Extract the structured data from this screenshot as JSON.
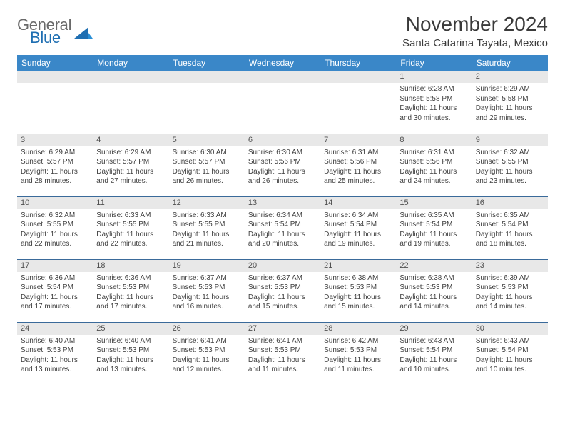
{
  "logo": {
    "general": "General",
    "blue": "Blue"
  },
  "title": "November 2024",
  "location": "Santa Catarina Tayata, Mexico",
  "colors": {
    "header_bg": "#3a87c8",
    "header_text": "#ffffff",
    "daynum_bg": "#e8e8e8",
    "row_border": "#3a6a9a",
    "logo_gray": "#6a6a6a",
    "logo_blue": "#1f6fb2",
    "text": "#404040"
  },
  "typography": {
    "title_fontsize": 28,
    "location_fontsize": 15,
    "weekday_fontsize": 12,
    "daynum_fontsize": 11,
    "body_fontsize": 10
  },
  "weekdays": [
    "Sunday",
    "Monday",
    "Tuesday",
    "Wednesday",
    "Thursday",
    "Friday",
    "Saturday"
  ],
  "weeks": [
    [
      {
        "n": "",
        "sunrise": "",
        "sunset": "",
        "daylight": ""
      },
      {
        "n": "",
        "sunrise": "",
        "sunset": "",
        "daylight": ""
      },
      {
        "n": "",
        "sunrise": "",
        "sunset": "",
        "daylight": ""
      },
      {
        "n": "",
        "sunrise": "",
        "sunset": "",
        "daylight": ""
      },
      {
        "n": "",
        "sunrise": "",
        "sunset": "",
        "daylight": ""
      },
      {
        "n": "1",
        "sunrise": "Sunrise: 6:28 AM",
        "sunset": "Sunset: 5:58 PM",
        "daylight": "Daylight: 11 hours and 30 minutes."
      },
      {
        "n": "2",
        "sunrise": "Sunrise: 6:29 AM",
        "sunset": "Sunset: 5:58 PM",
        "daylight": "Daylight: 11 hours and 29 minutes."
      }
    ],
    [
      {
        "n": "3",
        "sunrise": "Sunrise: 6:29 AM",
        "sunset": "Sunset: 5:57 PM",
        "daylight": "Daylight: 11 hours and 28 minutes."
      },
      {
        "n": "4",
        "sunrise": "Sunrise: 6:29 AM",
        "sunset": "Sunset: 5:57 PM",
        "daylight": "Daylight: 11 hours and 27 minutes."
      },
      {
        "n": "5",
        "sunrise": "Sunrise: 6:30 AM",
        "sunset": "Sunset: 5:57 PM",
        "daylight": "Daylight: 11 hours and 26 minutes."
      },
      {
        "n": "6",
        "sunrise": "Sunrise: 6:30 AM",
        "sunset": "Sunset: 5:56 PM",
        "daylight": "Daylight: 11 hours and 26 minutes."
      },
      {
        "n": "7",
        "sunrise": "Sunrise: 6:31 AM",
        "sunset": "Sunset: 5:56 PM",
        "daylight": "Daylight: 11 hours and 25 minutes."
      },
      {
        "n": "8",
        "sunrise": "Sunrise: 6:31 AM",
        "sunset": "Sunset: 5:56 PM",
        "daylight": "Daylight: 11 hours and 24 minutes."
      },
      {
        "n": "9",
        "sunrise": "Sunrise: 6:32 AM",
        "sunset": "Sunset: 5:55 PM",
        "daylight": "Daylight: 11 hours and 23 minutes."
      }
    ],
    [
      {
        "n": "10",
        "sunrise": "Sunrise: 6:32 AM",
        "sunset": "Sunset: 5:55 PM",
        "daylight": "Daylight: 11 hours and 22 minutes."
      },
      {
        "n": "11",
        "sunrise": "Sunrise: 6:33 AM",
        "sunset": "Sunset: 5:55 PM",
        "daylight": "Daylight: 11 hours and 22 minutes."
      },
      {
        "n": "12",
        "sunrise": "Sunrise: 6:33 AM",
        "sunset": "Sunset: 5:55 PM",
        "daylight": "Daylight: 11 hours and 21 minutes."
      },
      {
        "n": "13",
        "sunrise": "Sunrise: 6:34 AM",
        "sunset": "Sunset: 5:54 PM",
        "daylight": "Daylight: 11 hours and 20 minutes."
      },
      {
        "n": "14",
        "sunrise": "Sunrise: 6:34 AM",
        "sunset": "Sunset: 5:54 PM",
        "daylight": "Daylight: 11 hours and 19 minutes."
      },
      {
        "n": "15",
        "sunrise": "Sunrise: 6:35 AM",
        "sunset": "Sunset: 5:54 PM",
        "daylight": "Daylight: 11 hours and 19 minutes."
      },
      {
        "n": "16",
        "sunrise": "Sunrise: 6:35 AM",
        "sunset": "Sunset: 5:54 PM",
        "daylight": "Daylight: 11 hours and 18 minutes."
      }
    ],
    [
      {
        "n": "17",
        "sunrise": "Sunrise: 6:36 AM",
        "sunset": "Sunset: 5:54 PM",
        "daylight": "Daylight: 11 hours and 17 minutes."
      },
      {
        "n": "18",
        "sunrise": "Sunrise: 6:36 AM",
        "sunset": "Sunset: 5:53 PM",
        "daylight": "Daylight: 11 hours and 17 minutes."
      },
      {
        "n": "19",
        "sunrise": "Sunrise: 6:37 AM",
        "sunset": "Sunset: 5:53 PM",
        "daylight": "Daylight: 11 hours and 16 minutes."
      },
      {
        "n": "20",
        "sunrise": "Sunrise: 6:37 AM",
        "sunset": "Sunset: 5:53 PM",
        "daylight": "Daylight: 11 hours and 15 minutes."
      },
      {
        "n": "21",
        "sunrise": "Sunrise: 6:38 AM",
        "sunset": "Sunset: 5:53 PM",
        "daylight": "Daylight: 11 hours and 15 minutes."
      },
      {
        "n": "22",
        "sunrise": "Sunrise: 6:38 AM",
        "sunset": "Sunset: 5:53 PM",
        "daylight": "Daylight: 11 hours and 14 minutes."
      },
      {
        "n": "23",
        "sunrise": "Sunrise: 6:39 AM",
        "sunset": "Sunset: 5:53 PM",
        "daylight": "Daylight: 11 hours and 14 minutes."
      }
    ],
    [
      {
        "n": "24",
        "sunrise": "Sunrise: 6:40 AM",
        "sunset": "Sunset: 5:53 PM",
        "daylight": "Daylight: 11 hours and 13 minutes."
      },
      {
        "n": "25",
        "sunrise": "Sunrise: 6:40 AM",
        "sunset": "Sunset: 5:53 PM",
        "daylight": "Daylight: 11 hours and 13 minutes."
      },
      {
        "n": "26",
        "sunrise": "Sunrise: 6:41 AM",
        "sunset": "Sunset: 5:53 PM",
        "daylight": "Daylight: 11 hours and 12 minutes."
      },
      {
        "n": "27",
        "sunrise": "Sunrise: 6:41 AM",
        "sunset": "Sunset: 5:53 PM",
        "daylight": "Daylight: 11 hours and 11 minutes."
      },
      {
        "n": "28",
        "sunrise": "Sunrise: 6:42 AM",
        "sunset": "Sunset: 5:53 PM",
        "daylight": "Daylight: 11 hours and 11 minutes."
      },
      {
        "n": "29",
        "sunrise": "Sunrise: 6:43 AM",
        "sunset": "Sunset: 5:54 PM",
        "daylight": "Daylight: 11 hours and 10 minutes."
      },
      {
        "n": "30",
        "sunrise": "Sunrise: 6:43 AM",
        "sunset": "Sunset: 5:54 PM",
        "daylight": "Daylight: 11 hours and 10 minutes."
      }
    ]
  ]
}
